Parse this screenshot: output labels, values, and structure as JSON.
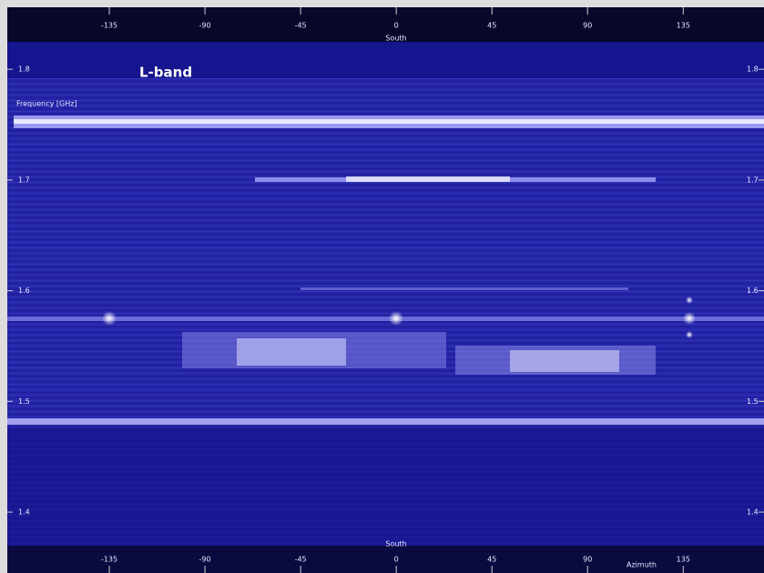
{
  "chart_data": {
    "type": "spectrogram",
    "title": "L-band",
    "y_label": "Frequency [GHz]",
    "x_label": "Azimuth",
    "x_marker": "South",
    "xlim": [
      -183,
      173
    ],
    "xticks": [
      -135,
      -90,
      -45,
      0,
      45,
      90,
      135
    ],
    "ylim": [
      1.345,
      1.856
    ],
    "yticks": [
      1.8,
      1.7,
      1.6,
      1.5,
      1.4
    ]
  }
}
